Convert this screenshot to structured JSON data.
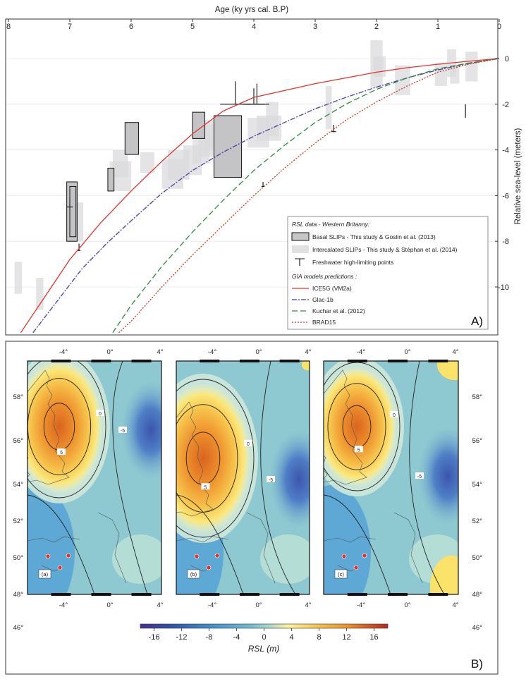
{
  "chart_data": [
    {
      "panel_label": "A)",
      "type": "line",
      "xlabel": "Age (ky yrs cal. B.P)",
      "ylabel": "Relative sea-level (meters)",
      "xlim": [
        8,
        0
      ],
      "ylim": [
        -12,
        1
      ],
      "x_ticks": [
        8,
        7,
        6,
        5,
        4,
        3,
        2,
        1,
        0
      ],
      "y_ticks": [
        0,
        -2,
        -4,
        -6,
        -8,
        -10
      ],
      "grid": "horizontal",
      "legend": {
        "position": "bottom-right",
        "data_heading": "RSL data - Western Britanny:",
        "model_heading": "GIA models predictions :",
        "entries": [
          {
            "type": "box-dark",
            "text": "Basal SLIPs - This study & Goslin et al. (2013)"
          },
          {
            "type": "box-light",
            "text": "Intercalated SLIPs - This study & Stéphan et al. (2014)"
          },
          {
            "type": "limit",
            "text": "Freshwater high-limiting points"
          },
          {
            "type": "line",
            "text": "ICE5G (VM2a)",
            "color": "#e0342c",
            "dash": ""
          },
          {
            "type": "line",
            "text": "Glac-1b",
            "color": "#4a3fa0",
            "dash": "7 2 2 2"
          },
          {
            "type": "line",
            "text": "Kuchar et al. (2012)",
            "color": "#2e8b3e",
            "dash": "8 4"
          },
          {
            "type": "line",
            "text": "BRAD15",
            "color": "#c83a28",
            "dash": "2 2"
          }
        ]
      },
      "series": [
        {
          "name": "ICE5G (VM2a)",
          "color": "#e0342c",
          "dash": "",
          "x": [
            7.8,
            7.4,
            7.0,
            6.5,
            6.0,
            5.5,
            5.0,
            4.5,
            4.0,
            3.5,
            3.0,
            2.5,
            2.0,
            1.5,
            1.0,
            0.5,
            0.0
          ],
          "y": [
            -12.0,
            -10.4,
            -8.8,
            -7.2,
            -5.8,
            -4.5,
            -3.3,
            -2.3,
            -1.7,
            -1.4,
            -1.1,
            -0.85,
            -0.6,
            -0.4,
            -0.25,
            -0.12,
            0.0
          ]
        },
        {
          "name": "Glac-1b",
          "color": "#4a3fa0",
          "dash": "7 2 2 2",
          "x": [
            7.6,
            7.2,
            6.8,
            6.4,
            6.0,
            5.5,
            5.0,
            4.5,
            4.0,
            3.5,
            3.0,
            2.5,
            2.0,
            1.5,
            1.0,
            0.5,
            0.0
          ],
          "y": [
            -12.0,
            -10.6,
            -9.2,
            -8.1,
            -7.1,
            -5.9,
            -4.9,
            -4.1,
            -3.4,
            -2.8,
            -2.2,
            -1.7,
            -1.25,
            -0.85,
            -0.5,
            -0.22,
            0.0
          ]
        },
        {
          "name": "Kuchar et al. (2012)",
          "color": "#2e8b3e",
          "dash": "8 4",
          "x": [
            6.3,
            6.0,
            5.5,
            5.0,
            4.5,
            4.0,
            3.5,
            3.0,
            2.5,
            2.0,
            1.5,
            1.0,
            0.5,
            0.0
          ],
          "y": [
            -12.0,
            -10.8,
            -9.1,
            -7.6,
            -6.2,
            -4.9,
            -3.8,
            -2.8,
            -2.0,
            -1.35,
            -0.85,
            -0.45,
            -0.2,
            0.0
          ]
        },
        {
          "name": "BRAD15",
          "color": "#c83a28",
          "dash": "2 2",
          "x": [
            6.2,
            6.0,
            5.5,
            5.0,
            4.5,
            4.0,
            3.5,
            3.0,
            2.5,
            2.0,
            1.5,
            1.0,
            0.5,
            0.0
          ],
          "y": [
            -12.0,
            -11.5,
            -10.0,
            -8.6,
            -7.3,
            -6.0,
            -4.8,
            -3.7,
            -2.7,
            -1.9,
            -1.2,
            -0.6,
            -0.25,
            0.0
          ]
        }
      ],
      "basal_slips": [
        {
          "x0": 7.05,
          "x1": 6.88,
          "y0": -8.0,
          "y1": -5.4
        },
        {
          "x0": 7.0,
          "x1": 6.9,
          "y0": -7.8,
          "y1": -5.6
        },
        {
          "x0": 6.38,
          "x1": 6.28,
          "y0": -5.8,
          "y1": -4.8
        },
        {
          "x0": 6.1,
          "x1": 5.88,
          "y0": -4.2,
          "y1": -2.8
        },
        {
          "x0": 5.0,
          "x1": 4.8,
          "y0": -3.5,
          "y1": -2.35
        },
        {
          "x0": 4.65,
          "x1": 4.2,
          "y0": -5.2,
          "y1": -2.5
        }
      ],
      "intercalated_slips": [
        {
          "x0": 7.9,
          "x1": 7.78,
          "y0": -10.3,
          "y1": -8.9
        },
        {
          "x0": 7.55,
          "x1": 7.43,
          "y0": -11.0,
          "y1": -9.6
        },
        {
          "x0": 6.88,
          "x1": 6.78,
          "y0": -8.0,
          "y1": -6.3
        },
        {
          "x0": 6.35,
          "x1": 6.0,
          "y0": -5.8,
          "y1": -4.5
        },
        {
          "x0": 6.3,
          "x1": 6.05,
          "y0": -5.2,
          "y1": -4.0
        },
        {
          "x0": 5.85,
          "x1": 5.62,
          "y0": -5.0,
          "y1": -4.1
        },
        {
          "x0": 5.5,
          "x1": 5.15,
          "y0": -5.7,
          "y1": -4.4
        },
        {
          "x0": 5.4,
          "x1": 5.05,
          "y0": -5.3,
          "y1": -4.0
        },
        {
          "x0": 5.15,
          "x1": 4.85,
          "y0": -5.1,
          "y1": -3.8
        },
        {
          "x0": 5.0,
          "x1": 4.72,
          "y0": -4.6,
          "y1": -3.3
        },
        {
          "x0": 4.9,
          "x1": 4.6,
          "y0": -4.3,
          "y1": -2.9
        },
        {
          "x0": 4.8,
          "x1": 4.55,
          "y0": -4.0,
          "y1": -2.7
        },
        {
          "x0": 4.1,
          "x1": 3.75,
          "y0": -3.9,
          "y1": -2.6
        },
        {
          "x0": 3.95,
          "x1": 3.55,
          "y0": -3.6,
          "y1": -2.5
        },
        {
          "x0": 3.8,
          "x1": 3.6,
          "y0": -3.4,
          "y1": -1.9
        },
        {
          "x0": 2.83,
          "x1": 2.73,
          "y0": -3.1,
          "y1": -1.2
        },
        {
          "x0": 2.1,
          "x1": 1.9,
          "y0": -1.3,
          "y1": 0.8
        },
        {
          "x0": 2.05,
          "x1": 1.85,
          "y0": -0.8,
          "y1": 0.1
        },
        {
          "x0": 1.7,
          "x1": 1.45,
          "y0": -1.6,
          "y1": -0.3
        },
        {
          "x0": 1.05,
          "x1": 0.85,
          "y0": -1.2,
          "y1": -0.2
        },
        {
          "x0": 0.85,
          "x1": 0.7,
          "y0": -0.8,
          "y1": 0.4
        },
        {
          "x0": 0.8,
          "x1": 0.65,
          "y0": -1.1,
          "y1": -0.3
        },
        {
          "x0": 0.55,
          "x1": 0.35,
          "y0": -1.0,
          "y1": 0.3
        }
      ],
      "limit_points": [
        {
          "x": 7.0,
          "y": -6.5,
          "w": 0.1,
          "h": 0.4
        },
        {
          "x": 6.85,
          "y": -8.4,
          "w": 0.05,
          "h": 0.3
        },
        {
          "x": 4.0,
          "y": -2.0,
          "w": 0.35,
          "h": 0.7
        },
        {
          "x": 3.95,
          "y": -2.0,
          "w": 0.4,
          "h": 0.9
        },
        {
          "x": 4.3,
          "y": -2.0,
          "w": 0.5,
          "h": 1.0
        },
        {
          "x": 3.85,
          "y": -5.6,
          "w": 0.05,
          "h": 0.2
        },
        {
          "x": 2.7,
          "y": -3.2,
          "w": 0.08,
          "h": 0.3
        },
        {
          "x": 0.55,
          "y": -2.3,
          "w": 0.0,
          "h": 0.3
        }
      ]
    },
    {
      "panel_label": "B)",
      "type": "heatmap",
      "colorbar": {
        "label": "RSL (m)",
        "ticks": [
          -16,
          -12,
          -8,
          -4,
          0,
          4,
          8,
          12,
          16
        ],
        "range": [
          -18,
          18
        ],
        "colors": [
          "#5a3c9c",
          "#2f5fb4",
          "#3f8fd0",
          "#5fb4d8",
          "#86c8cf",
          "#a7d8d2",
          "#fff8a0",
          "#f6c24a",
          "#ee8f2c",
          "#d6521e",
          "#b8281c"
        ]
      },
      "lon_ticks": [
        "-4°",
        "0°",
        "4°"
      ],
      "lat_ticks": [
        "58°",
        "56°",
        "54°",
        "52°",
        "50°",
        "48°",
        "46°"
      ],
      "maps": [
        {
          "label": "(a)",
          "peak": 10,
          "contour_labels": [
            "0",
            "5",
            "-5"
          ],
          "east_anomaly": -14
        },
        {
          "label": "(b)",
          "peak": 8,
          "contour_labels": [
            "0",
            "5",
            "-5"
          ],
          "east_anomaly": -9
        },
        {
          "label": "(c)",
          "peak": 7,
          "contour_labels": [
            "0",
            "5",
            "-5"
          ],
          "east_anomaly": -7
        }
      ]
    }
  ]
}
